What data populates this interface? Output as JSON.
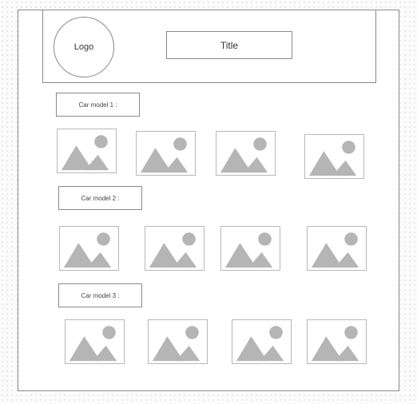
{
  "header": {
    "logo": "Logo",
    "title": "Title"
  },
  "sections": [
    {
      "label": "Car model 1 :",
      "images": [
        "image-placeholder-icon",
        "image-placeholder-icon",
        "image-placeholder-icon",
        "image-placeholder-icon"
      ]
    },
    {
      "label": "Car model 2 :",
      "images": [
        "image-placeholder-icon",
        "image-placeholder-icon",
        "image-placeholder-icon",
        "image-placeholder-icon"
      ]
    },
    {
      "label": "Car model 3 :",
      "images": [
        "image-placeholder-icon",
        "image-placeholder-icon",
        "image-placeholder-icon",
        "image-placeholder-icon"
      ]
    }
  ],
  "colors": {
    "outline": "#8a8a8a",
    "placeholder": "#b5b5b5"
  }
}
